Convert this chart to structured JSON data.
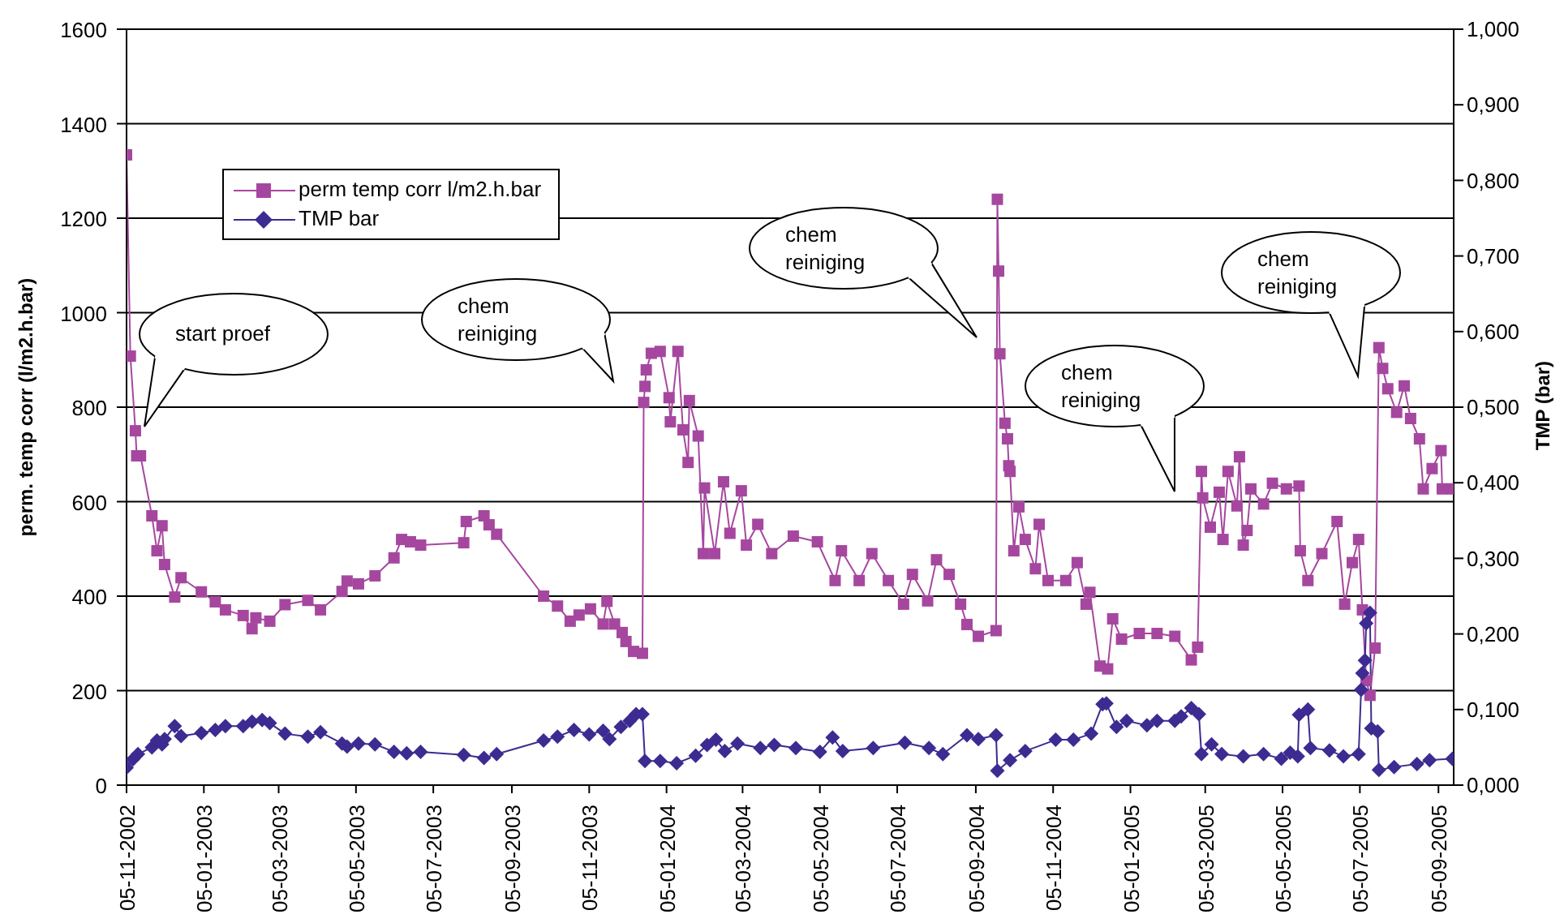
{
  "chart_data": {
    "type": "line",
    "ylabel": "perm. temp corr (l/m2.h.bar)",
    "y2label": "TMP (bar)",
    "xlim": [
      "2002-11-05",
      "2005-09-17"
    ],
    "xticks": [
      {
        "value": "2002-11-05",
        "label": "05-11-2002"
      },
      {
        "value": "2003-01-05",
        "label": "05-01-2003"
      },
      {
        "value": "2003-03-05",
        "label": "05-03-2003"
      },
      {
        "value": "2003-05-05",
        "label": "05-05-2003"
      },
      {
        "value": "2003-07-05",
        "label": "05-07-2003"
      },
      {
        "value": "2003-09-05",
        "label": "05-09-2003"
      },
      {
        "value": "2003-11-05",
        "label": "05-11-2003"
      },
      {
        "value": "2004-01-05",
        "label": "05-01-2004"
      },
      {
        "value": "2004-03-05",
        "label": "05-03-2004"
      },
      {
        "value": "2004-05-05",
        "label": "05-05-2004"
      },
      {
        "value": "2004-07-05",
        "label": "05-07-2004"
      },
      {
        "value": "2004-09-05",
        "label": "05-09-2004"
      },
      {
        "value": "2004-11-05",
        "label": "05-11-2004"
      },
      {
        "value": "2005-01-05",
        "label": "05-01-2005"
      },
      {
        "value": "2005-03-05",
        "label": "05-03-2005"
      },
      {
        "value": "2005-05-05",
        "label": "05-05-2005"
      },
      {
        "value": "2005-07-05",
        "label": "05-07-2005"
      },
      {
        "value": "2005-09-05",
        "label": "05-09-2005"
      }
    ],
    "ylim": [
      0,
      1600
    ],
    "yticks": [
      0,
      200,
      400,
      600,
      800,
      1000,
      1200,
      1400,
      1600
    ],
    "y2lim": [
      0,
      1
    ],
    "y2ticks": [
      {
        "value": 0,
        "label": "0,000"
      },
      {
        "value": 0.1,
        "label": "0,100"
      },
      {
        "value": 0.2,
        "label": "0,200"
      },
      {
        "value": 0.3,
        "label": "0,300"
      },
      {
        "value": 0.4,
        "label": "0,400"
      },
      {
        "value": 0.5,
        "label": "0,500"
      },
      {
        "value": 0.6,
        "label": "0,600"
      },
      {
        "value": 0.7,
        "label": "0,700"
      },
      {
        "value": 0.8,
        "label": "0,800"
      },
      {
        "value": 0.9,
        "label": "0,900"
      },
      {
        "value": 1,
        "label": "1,000"
      }
    ],
    "grid": "y",
    "legend": "top left",
    "annotations": [
      "start proef",
      "chem reiniging",
      "chem reiniging",
      "chem reiniging",
      "chem reiniging"
    ],
    "series": [
      {
        "name": "perm temp corr l/m2.h.bar",
        "color": "#a6479f",
        "marker": "square",
        "x": [
          "2002-11-05",
          "2002-11-08",
          "2002-11-12",
          "2002-11-13",
          "2002-11-16",
          "2002-11-25",
          "2002-11-29",
          "2002-12-03",
          "2002-12-05",
          "2002-12-13",
          "2002-12-18",
          "2003-01-03",
          "2003-01-14",
          "2003-01-22",
          "2003-02-05",
          "2003-02-12",
          "2003-02-15",
          "2003-02-26",
          "2003-03-10",
          "2003-03-28",
          "2003-04-07",
          "2003-04-24",
          "2003-04-28",
          "2003-05-07",
          "2003-05-20",
          "2003-06-04",
          "2003-06-10",
          "2003-06-17",
          "2003-06-25",
          "2003-07-29",
          "2003-07-31",
          "2003-08-14",
          "2003-08-18",
          "2003-08-24",
          "2003-09-30",
          "2003-10-11",
          "2003-10-21",
          "2003-10-28",
          "2003-11-06",
          "2003-11-16",
          "2003-11-19",
          "2003-11-25",
          "2003-12-01",
          "2003-12-04",
          "2003-12-10",
          "2003-12-17",
          "2003-12-18",
          "2003-12-19",
          "2003-12-20",
          "2003-12-24",
          "2003-12-31",
          "2004-01-07",
          "2004-01-08",
          "2004-01-14",
          "2004-01-18",
          "2004-01-22",
          "2004-01-23",
          "2004-01-30",
          "2004-02-03",
          "2004-02-04",
          "2004-02-12",
          "2004-02-19",
          "2004-02-24",
          "2004-03-04",
          "2004-03-08",
          "2004-03-17",
          "2004-03-28",
          "2004-04-14",
          "2004-05-03",
          "2004-05-17",
          "2004-05-22",
          "2004-06-05",
          "2004-06-15",
          "2004-06-28",
          "2004-07-10",
          "2004-07-17",
          "2004-07-29",
          "2004-08-05",
          "2004-08-15",
          "2004-08-24",
          "2004-08-29",
          "2004-09-07",
          "2004-09-21",
          "2004-09-22",
          "2004-09-23",
          "2004-09-24",
          "2004-09-28",
          "2004-09-30",
          "2004-10-01",
          "2004-10-02",
          "2004-10-05",
          "2004-10-09",
          "2004-10-14",
          "2004-10-22",
          "2004-10-25",
          "2004-11-01",
          "2004-11-15",
          "2004-11-24",
          "2004-12-01",
          "2004-12-04",
          "2004-12-12",
          "2004-12-18",
          "2004-12-22",
          "2004-12-29",
          "2005-01-12",
          "2005-01-26",
          "2005-02-09",
          "2005-02-22",
          "2005-02-27",
          "2005-03-02",
          "2005-03-03",
          "2005-03-09",
          "2005-03-16",
          "2005-03-19",
          "2005-03-23",
          "2005-03-30",
          "2005-04-01",
          "2005-04-04",
          "2005-04-07",
          "2005-04-10",
          "2005-04-20",
          "2005-04-27",
          "2005-05-08",
          "2005-05-18",
          "2005-05-19",
          "2005-05-25",
          "2005-06-05",
          "2005-06-17",
          "2005-06-23",
          "2005-06-29",
          "2005-07-04",
          "2005-07-07",
          "2005-07-10",
          "2005-07-13",
          "2005-07-17",
          "2005-07-20",
          "2005-07-23",
          "2005-07-27",
          "2005-08-03",
          "2005-08-09",
          "2005-08-14",
          "2005-08-21",
          "2005-08-24",
          "2005-08-31",
          "2005-09-07",
          "2005-09-08",
          "2005-09-16"
        ],
        "values": [
          1334,
          908,
          750,
          697,
          697,
          570,
          496,
          549,
          467,
          398,
          439,
          409,
          388,
          371,
          359,
          331,
          354,
          347,
          382,
          391,
          371,
          410,
          432,
          426,
          443,
          481,
          520,
          515,
          508,
          513,
          558,
          570,
          551,
          531,
          400,
          379,
          347,
          360,
          373,
          341,
          389,
          341,
          323,
          304,
          283,
          279,
          810,
          844,
          879,
          914,
          918,
          820,
          769,
          918,
          752,
          683,
          814,
          739,
          490,
          629,
          490,
          642,
          533,
          623,
          508,
          552,
          490,
          527,
          515,
          433,
          496,
          433,
          490,
          433,
          383,
          446,
          390,
          477,
          446,
          383,
          340,
          315,
          327,
          1240,
          1088,
          913,
          766,
          733,
          676,
          664,
          496,
          589,
          520,
          458,
          552,
          433,
          433,
          471,
          383,
          408,
          252,
          246,
          352,
          309,
          321,
          321,
          315,
          265,
          292,
          664,
          608,
          546,
          620,
          520,
          664,
          591,
          695,
          508,
          539,
          627,
          595,
          639,
          627,
          633,
          496,
          433,
          490,
          558,
          383,
          471,
          520,
          371,
          221,
          190,
          290,
          926,
          882,
          839,
          789,
          845,
          776,
          733,
          627,
          670,
          708,
          627,
          627
        ]
      },
      {
        "name": "TMP bar",
        "color": "#3d2b91",
        "marker": "diamond",
        "axis": "y2",
        "x": [
          "2002-11-05",
          "2002-11-10",
          "2002-11-14",
          "2002-11-25",
          "2002-11-29",
          "2002-12-03",
          "2002-12-05",
          "2002-12-13",
          "2002-12-18",
          "2003-01-03",
          "2003-01-14",
          "2003-01-22",
          "2003-02-05",
          "2003-02-12",
          "2003-02-20",
          "2003-02-26",
          "2003-03-10",
          "2003-03-28",
          "2003-04-07",
          "2003-04-24",
          "2003-04-28",
          "2003-05-07",
          "2003-05-20",
          "2003-06-04",
          "2003-06-14",
          "2003-06-25",
          "2003-07-29",
          "2003-08-14",
          "2003-08-24",
          "2003-09-30",
          "2003-10-11",
          "2003-10-24",
          "2003-11-05",
          "2003-11-16",
          "2003-11-21",
          "2003-11-30",
          "2003-12-07",
          "2003-12-12",
          "2003-12-17",
          "2003-12-19",
          "2003-12-31",
          "2004-01-13",
          "2004-01-28",
          "2004-02-06",
          "2004-02-13",
          "2004-02-20",
          "2004-03-01",
          "2004-03-19",
          "2004-03-30",
          "2004-04-16",
          "2004-05-05",
          "2004-05-15",
          "2004-05-23",
          "2004-06-16",
          "2004-07-11",
          "2004-07-30",
          "2004-08-10",
          "2004-08-29",
          "2004-09-07",
          "2004-09-21",
          "2004-09-22",
          "2004-10-02",
          "2004-10-14",
          "2004-11-07",
          "2004-11-21",
          "2004-12-05",
          "2004-12-14",
          "2004-12-17",
          "2004-12-25",
          "2005-01-02",
          "2005-01-18",
          "2005-01-26",
          "2005-02-09",
          "2005-02-14",
          "2005-02-22",
          "2005-02-28",
          "2005-03-02",
          "2005-03-10",
          "2005-03-18",
          "2005-04-04",
          "2005-04-20",
          "2005-05-04",
          "2005-05-11",
          "2005-05-17",
          "2005-05-18",
          "2005-05-25",
          "2005-05-27",
          "2005-06-11",
          "2005-06-22",
          "2005-07-04",
          "2005-07-06",
          "2005-07-07",
          "2005-07-09",
          "2005-07-10",
          "2005-07-13",
          "2005-07-14",
          "2005-07-19",
          "2005-07-20",
          "2005-08-01",
          "2005-08-19",
          "2005-08-29",
          "2005-09-16"
        ],
        "values": [
          0.023,
          0.034,
          0.041,
          0.05,
          0.059,
          0.054,
          0.061,
          0.078,
          0.065,
          0.069,
          0.073,
          0.078,
          0.078,
          0.084,
          0.086,
          0.082,
          0.068,
          0.064,
          0.07,
          0.055,
          0.051,
          0.055,
          0.054,
          0.044,
          0.042,
          0.044,
          0.04,
          0.036,
          0.041,
          0.059,
          0.064,
          0.073,
          0.067,
          0.072,
          0.061,
          0.077,
          0.085,
          0.094,
          0.094,
          0.032,
          0.032,
          0.029,
          0.039,
          0.053,
          0.06,
          0.045,
          0.055,
          0.049,
          0.053,
          0.049,
          0.044,
          0.063,
          0.045,
          0.049,
          0.056,
          0.049,
          0.041,
          0.066,
          0.061,
          0.066,
          0.019,
          0.033,
          0.045,
          0.06,
          0.06,
          0.068,
          0.107,
          0.108,
          0.077,
          0.085,
          0.079,
          0.085,
          0.085,
          0.091,
          0.102,
          0.094,
          0.041,
          0.054,
          0.041,
          0.038,
          0.041,
          0.035,
          0.043,
          0.038,
          0.093,
          0.1,
          0.049,
          0.046,
          0.038,
          0.041,
          0.126,
          0.148,
          0.165,
          0.214,
          0.228,
          0.075,
          0.071,
          0.02,
          0.024,
          0.028,
          0.033,
          0.035
        ]
      }
    ]
  }
}
